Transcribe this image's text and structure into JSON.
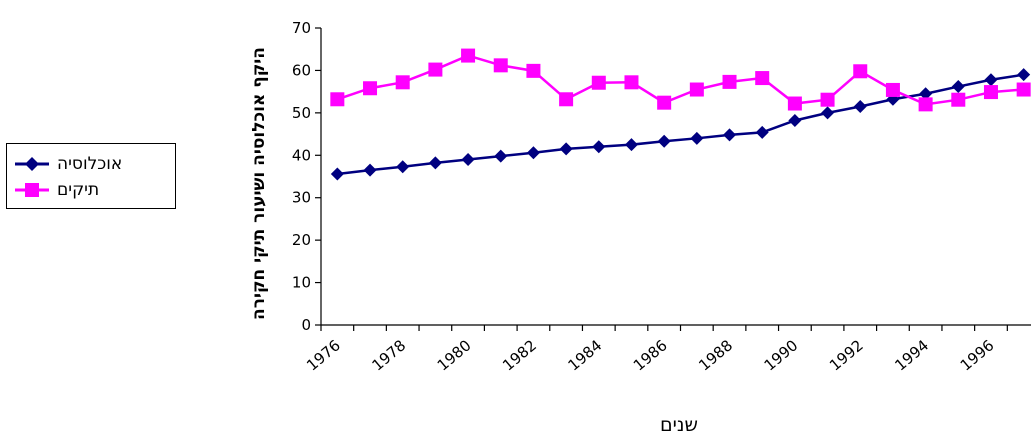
{
  "chart_data": {
    "type": "line",
    "ylabel": "היקף אוכלוסיה ושיעור תיקי חקירה",
    "xlabel": "שנים",
    "ylim": [
      0,
      70
    ],
    "yticks": [
      0,
      10,
      20,
      30,
      40,
      50,
      60,
      70
    ],
    "x": [
      1976,
      1977,
      1978,
      1979,
      1980,
      1981,
      1982,
      1983,
      1984,
      1985,
      1986,
      1987,
      1988,
      1989,
      1990,
      1991,
      1992,
      1993,
      1994,
      1995,
      1996,
      1997
    ],
    "xtick_labels": [
      "1976",
      "1978",
      "1980",
      "1982",
      "1984",
      "1986",
      "1988",
      "1990",
      "1992",
      "1994",
      "1996"
    ],
    "grid": false,
    "legend_position": "left",
    "series": [
      {
        "name": "אוכלוסיה",
        "color": "#000080",
        "marker": "diamond",
        "values": [
          35.6,
          36.5,
          37.3,
          38.2,
          39.0,
          39.8,
          40.6,
          41.5,
          42.0,
          42.5,
          43.3,
          44.0,
          44.8,
          45.4,
          48.2,
          50.0,
          51.5,
          53.2,
          54.5,
          56.2,
          57.8,
          59.0
        ]
      },
      {
        "name": "תיקים",
        "color": "#ff00ff",
        "marker": "square",
        "values": [
          53.2,
          55.8,
          57.2,
          60.2,
          63.5,
          61.2,
          59.9,
          53.2,
          57.1,
          57.2,
          52.4,
          55.5,
          57.3,
          58.2,
          52.2,
          53.1,
          59.8,
          55.4,
          52.0,
          53.1,
          54.9,
          55.5
        ]
      }
    ]
  }
}
